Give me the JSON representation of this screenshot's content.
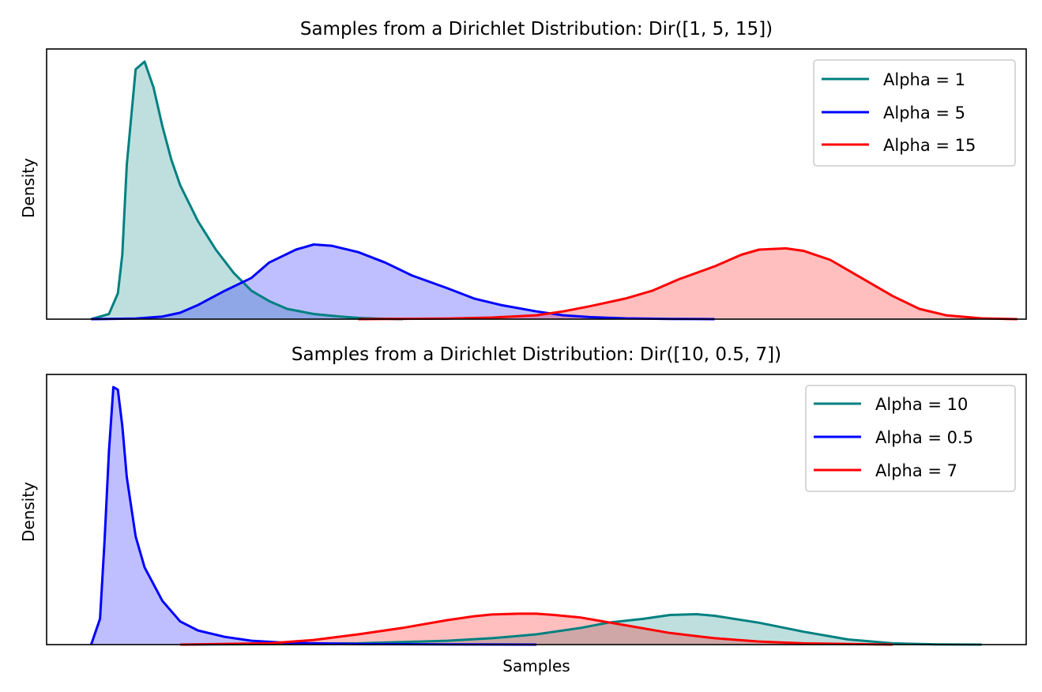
{
  "chart_data": [
    {
      "type": "area",
      "title": "Samples from a Dirichlet Distribution: Dir([1, 5, 15])",
      "xlabel": "",
      "ylabel": "Density",
      "xlim": [
        -0.05,
        1.05
      ],
      "grid": false,
      "legend_position": "top-right",
      "series": [
        {
          "name": "Alpha = 1",
          "color": "#008080",
          "x": [
            0.0,
            0.02,
            0.03,
            0.035,
            0.04,
            0.05,
            0.06,
            0.07,
            0.08,
            0.09,
            0.1,
            0.12,
            0.14,
            0.16,
            0.18,
            0.2,
            0.22,
            0.25,
            0.28,
            0.3,
            0.32,
            0.35
          ],
          "y": [
            0.0,
            0.02,
            0.1,
            0.25,
            0.6,
            0.97,
            1.0,
            0.9,
            0.75,
            0.62,
            0.52,
            0.38,
            0.27,
            0.18,
            0.11,
            0.07,
            0.04,
            0.02,
            0.01,
            0.005,
            0.002,
            0.0
          ]
        },
        {
          "name": "Alpha = 5",
          "color": "#0000ff",
          "x": [
            0.0,
            0.05,
            0.08,
            0.1,
            0.12,
            0.15,
            0.18,
            0.2,
            0.23,
            0.25,
            0.27,
            0.3,
            0.33,
            0.36,
            0.4,
            0.43,
            0.46,
            0.5,
            0.53,
            0.56,
            0.6,
            0.65,
            0.7
          ],
          "y": [
            0.0,
            0.002,
            0.01,
            0.025,
            0.055,
            0.11,
            0.16,
            0.22,
            0.27,
            0.29,
            0.285,
            0.26,
            0.22,
            0.17,
            0.12,
            0.08,
            0.055,
            0.03,
            0.015,
            0.008,
            0.003,
            0.001,
            0.0
          ]
        },
        {
          "name": "Alpha = 15",
          "color": "#ff0000",
          "x": [
            0.3,
            0.4,
            0.45,
            0.5,
            0.53,
            0.56,
            0.6,
            0.63,
            0.66,
            0.7,
            0.73,
            0.75,
            0.78,
            0.8,
            0.83,
            0.86,
            0.9,
            0.93,
            0.96,
            1.0,
            1.04
          ],
          "y": [
            0.0,
            0.002,
            0.006,
            0.015,
            0.03,
            0.05,
            0.08,
            0.11,
            0.155,
            0.205,
            0.25,
            0.27,
            0.275,
            0.265,
            0.23,
            0.17,
            0.09,
            0.04,
            0.015,
            0.003,
            0.0
          ]
        }
      ]
    },
    {
      "type": "area",
      "title": "Samples from a Dirichlet Distribution: Dir([10, 0.5, 7])",
      "xlabel": "Samples",
      "ylabel": "Density",
      "xlim": [
        -0.05,
        1.05
      ],
      "grid": false,
      "legend_position": "top-right",
      "series": [
        {
          "name": "Alpha = 10",
          "color": "#008080",
          "x": [
            0.1,
            0.2,
            0.3,
            0.35,
            0.4,
            0.45,
            0.5,
            0.55,
            0.58,
            0.62,
            0.65,
            0.68,
            0.7,
            0.75,
            0.8,
            0.85,
            0.9,
            0.95,
            1.0
          ],
          "y": [
            0.0,
            0.002,
            0.005,
            0.01,
            0.015,
            0.025,
            0.04,
            0.065,
            0.085,
            0.1,
            0.115,
            0.118,
            0.112,
            0.085,
            0.05,
            0.02,
            0.005,
            0.001,
            0.0
          ]
        },
        {
          "name": "Alpha = 0.5",
          "color": "#0000ff",
          "x": [
            0.0,
            0.01,
            0.015,
            0.02,
            0.025,
            0.03,
            0.035,
            0.04,
            0.05,
            0.06,
            0.08,
            0.1,
            0.12,
            0.15,
            0.18,
            0.22,
            0.3,
            0.4,
            0.5
          ],
          "y": [
            0.0,
            0.1,
            0.4,
            0.75,
            1.0,
            0.99,
            0.85,
            0.65,
            0.42,
            0.3,
            0.17,
            0.09,
            0.055,
            0.03,
            0.015,
            0.007,
            0.002,
            0.0005,
            0.0
          ]
        },
        {
          "name": "Alpha = 7",
          "color": "#ff0000",
          "x": [
            0.1,
            0.2,
            0.25,
            0.3,
            0.35,
            0.4,
            0.43,
            0.45,
            0.48,
            0.5,
            0.52,
            0.55,
            0.6,
            0.65,
            0.7,
            0.75,
            0.8,
            0.9
          ],
          "y": [
            0.0,
            0.005,
            0.018,
            0.04,
            0.065,
            0.095,
            0.11,
            0.117,
            0.12,
            0.12,
            0.115,
            0.105,
            0.075,
            0.045,
            0.025,
            0.012,
            0.005,
            0.0
          ]
        }
      ]
    }
  ]
}
